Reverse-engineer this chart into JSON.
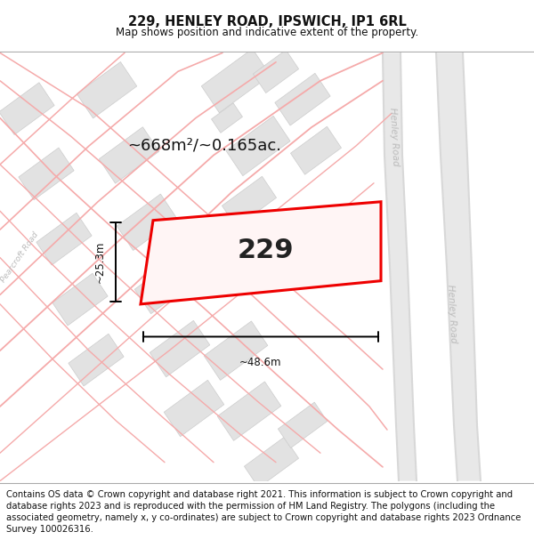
{
  "title": "229, HENLEY ROAD, IPSWICH, IP1 6RL",
  "subtitle": "Map shows position and indicative extent of the property.",
  "footer": "Contains OS data © Crown copyright and database right 2021. This information is subject to Crown copyright and database rights 2023 and is reproduced with the permission of HM Land Registry. The polygons (including the associated geometry, namely x, y co-ordinates) are subject to Crown copyright and database rights 2023 Ordnance Survey 100026316.",
  "area_label": "~668m²/~0.165ac.",
  "number_label": "229",
  "width_label": "~48.6m",
  "height_label": "~25.3m",
  "bg_color": "#ffffff",
  "road_line_color": "#f5aaaa",
  "henley_road_color": "#d8d8d8",
  "building_fill": "#e2e2e2",
  "building_edge": "#cccccc",
  "highlight_fill": "#fff5f5",
  "highlight_color": "#ee0000",
  "road_label_color": "#bbbbbb",
  "title_fontsize": 10.5,
  "subtitle_fontsize": 8.5,
  "footer_fontsize": 7.2,
  "area_fontsize": 13,
  "number_fontsize": 22,
  "dim_fontsize": 8.5
}
